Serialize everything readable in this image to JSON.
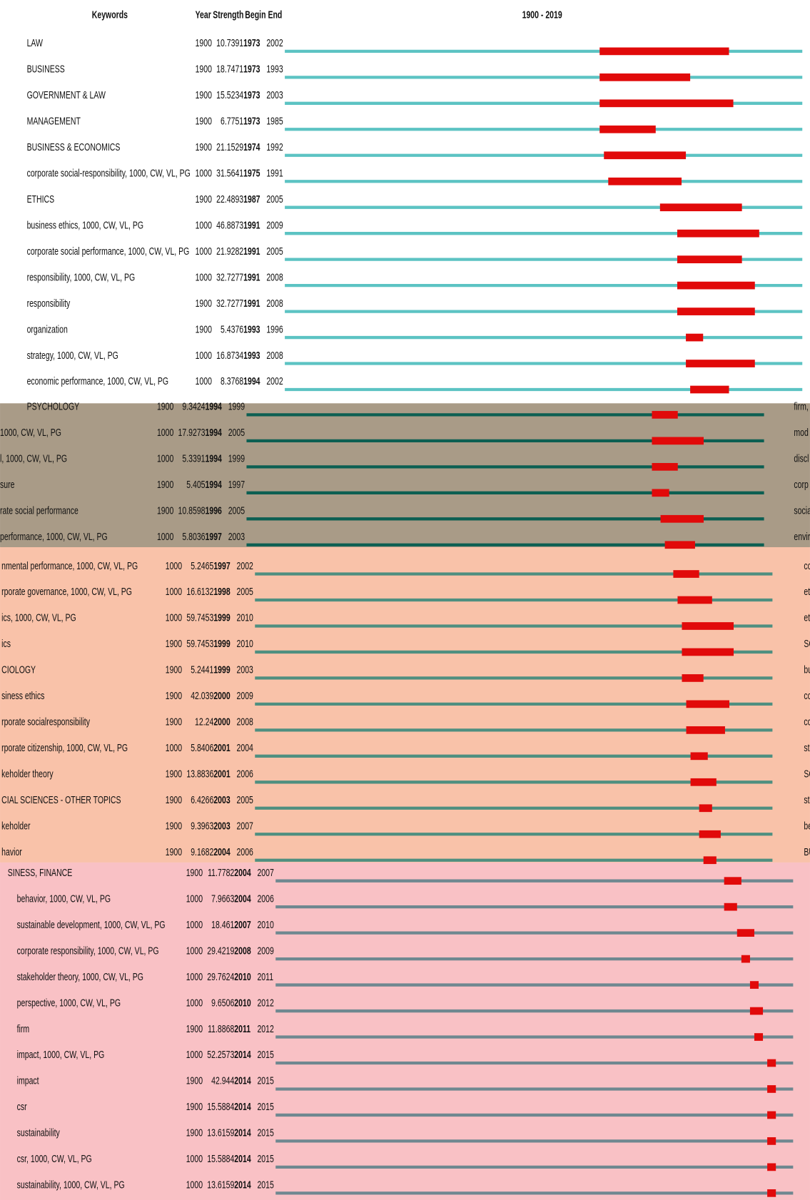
{
  "header": {
    "keywords": "Keywords",
    "year": "Year",
    "strength": "Strength",
    "begin": "Begin",
    "end": "End"
  },
  "timeline": {
    "label": "1900 - 2019",
    "xlim": [
      1900,
      2019
    ]
  },
  "sections": [
    {
      "rows": [
        {
          "keyword": "LAW",
          "year": 1900,
          "strength": 10.7391,
          "begin": 1973,
          "end": 2002
        },
        {
          "keyword": "BUSINESS",
          "year": 1900,
          "strength": 18.7471,
          "begin": 1973,
          "end": 1993
        },
        {
          "keyword": "GOVERNMENT & LAW",
          "year": 1900,
          "strength": 15.5234,
          "begin": 1973,
          "end": 2003
        },
        {
          "keyword": "MANAGEMENT",
          "year": 1900,
          "strength": 6.7751,
          "begin": 1973,
          "end": 1985
        },
        {
          "keyword": "BUSINESS & ECONOMICS",
          "year": 1900,
          "strength": 21.1529,
          "begin": 1974,
          "end": 1992
        },
        {
          "keyword": "corporate social-responsibility, 1000, CW, VL, PG",
          "year": 1000,
          "strength": 31.5641,
          "begin": 1975,
          "end": 1991
        },
        {
          "keyword": "ETHICS",
          "year": 1900,
          "strength": 22.4893,
          "begin": 1987,
          "end": 2005
        },
        {
          "keyword": "business ethics, 1000, CW, VL, PG",
          "year": 1000,
          "strength": 46.8873,
          "begin": 1991,
          "end": 2009
        },
        {
          "keyword": "corporate social performance, 1000, CW, VL, PG",
          "year": 1000,
          "strength": 21.9282,
          "begin": 1991,
          "end": 2005
        },
        {
          "keyword": "responsibility, 1000, CW, VL, PG",
          "year": 1000,
          "strength": 32.7277,
          "begin": 1991,
          "end": 2008
        },
        {
          "keyword": "responsibility",
          "year": 1900,
          "strength": 32.7277,
          "begin": 1991,
          "end": 2008
        },
        {
          "keyword": "organization",
          "year": 1900,
          "strength": 5.4376,
          "begin": 1993,
          "end": 1996
        },
        {
          "keyword": "strategy, 1000, CW, VL, PG",
          "year": 1000,
          "strength": 16.8734,
          "begin": 1993,
          "end": 2008
        },
        {
          "keyword": "economic performance, 1000, CW, VL, PG",
          "year": 1000,
          "strength": 8.3768,
          "begin": 1994,
          "end": 2002
        }
      ],
      "overflow": []
    },
    {
      "rows": [
        {
          "keyword": "PSYCHOLOGY",
          "year": 1900,
          "strength": 9.3424,
          "begin": 1994,
          "end": 1999
        },
        {
          "keyword": "1000, CW, VL, PG",
          "year": 1000,
          "strength": 17.9273,
          "begin": 1994,
          "end": 2005
        },
        {
          "keyword": "l, 1000, CW, VL, PG",
          "year": 1000,
          "strength": 5.3391,
          "begin": 1994,
          "end": 1999
        },
        {
          "keyword": "sure",
          "year": 1900,
          "strength": 5.405,
          "begin": 1994,
          "end": 1997
        },
        {
          "keyword": "rate social performance",
          "year": 1900,
          "strength": 10.8598,
          "begin": 1996,
          "end": 2005
        },
        {
          "keyword": "performance, 1000, CW, VL, PG",
          "year": 1000,
          "strength": 5.8036,
          "begin": 1997,
          "end": 2003
        }
      ],
      "overflow": [
        "firm,",
        "mod",
        "discl",
        "corp",
        "socia",
        "envir"
      ]
    },
    {
      "rows": [
        {
          "keyword": "nmental performance, 1000, CW, VL, PG",
          "year": 1000,
          "strength": 5.2465,
          "begin": 1997,
          "end": 2002
        },
        {
          "keyword": "rporate governance, 1000, CW, VL, PG",
          "year": 1000,
          "strength": 16.6132,
          "begin": 1998,
          "end": 2005
        },
        {
          "keyword": "ics, 1000, CW, VL, PG",
          "year": 1000,
          "strength": 59.7453,
          "begin": 1999,
          "end": 2010
        },
        {
          "keyword": "ics",
          "year": 1900,
          "strength": 59.7453,
          "begin": 1999,
          "end": 2010
        },
        {
          "keyword": "CIOLOGY",
          "year": 1900,
          "strength": 5.2441,
          "begin": 1999,
          "end": 2003
        },
        {
          "keyword": "siness ethics",
          "year": 1900,
          "strength": 42.039,
          "begin": 2000,
          "end": 2009
        },
        {
          "keyword": "rporate socialresponsibility",
          "year": 1900,
          "strength": 12.24,
          "begin": 2000,
          "end": 2008
        },
        {
          "keyword": "rporate citizenship, 1000, CW, VL, PG",
          "year": 1000,
          "strength": 5.8406,
          "begin": 2001,
          "end": 2004
        },
        {
          "keyword": "keholder theory",
          "year": 1900,
          "strength": 13.8836,
          "begin": 2001,
          "end": 2006
        },
        {
          "keyword": "CIAL SCIENCES - OTHER TOPICS",
          "year": 1900,
          "strength": 6.4266,
          "begin": 2003,
          "end": 2005
        },
        {
          "keyword": "keholder",
          "year": 1900,
          "strength": 9.3963,
          "begin": 2003,
          "end": 2007
        },
        {
          "keyword": "havior",
          "year": 1900,
          "strength": 9.1682,
          "begin": 2004,
          "end": 2006
        }
      ],
      "overflow": [
        "co",
        "et",
        "et",
        "SC",
        "bu",
        "co",
        "co",
        "st",
        "SC",
        "st",
        "be",
        "BU"
      ]
    },
    {
      "rows": [
        {
          "keyword": "SINESS, FINANCE",
          "year": 1900,
          "strength": 11.7782,
          "begin": 2004,
          "end": 2007
        },
        {
          "keyword": "behavior, 1000, CW, VL, PG",
          "year": 1000,
          "strength": 7.9663,
          "begin": 2004,
          "end": 2006
        },
        {
          "keyword": "sustainable development, 1000, CW, VL, PG",
          "year": 1000,
          "strength": 18.461,
          "begin": 2007,
          "end": 2010
        },
        {
          "keyword": "corporate responsibility, 1000, CW, VL, PG",
          "year": 1000,
          "strength": 29.4219,
          "begin": 2008,
          "end": 2009
        },
        {
          "keyword": "stakeholder theory, 1000, CW, VL, PG",
          "year": 1000,
          "strength": 29.7624,
          "begin": 2010,
          "end": 2011
        },
        {
          "keyword": "perspective, 1000, CW, VL, PG",
          "year": 1000,
          "strength": 9.6506,
          "begin": 2010,
          "end": 2012
        },
        {
          "keyword": "firm",
          "year": 1900,
          "strength": 11.8868,
          "begin": 2011,
          "end": 2012
        },
        {
          "keyword": "impact, 1000, CW, VL, PG",
          "year": 1000,
          "strength": 52.2573,
          "begin": 2014,
          "end": 2015
        },
        {
          "keyword": "impact",
          "year": 1900,
          "strength": 42.944,
          "begin": 2014,
          "end": 2015
        },
        {
          "keyword": "csr",
          "year": 1900,
          "strength": 15.5884,
          "begin": 2014,
          "end": 2015
        },
        {
          "keyword": "sustainability",
          "year": 1900,
          "strength": 13.6159,
          "begin": 2014,
          "end": 2015
        },
        {
          "keyword": "csr, 1000, CW, VL, PG",
          "year": 1000,
          "strength": 15.5884,
          "begin": 2014,
          "end": 2015
        },
        {
          "keyword": "sustainability, 1000, CW, VL, PG",
          "year": 1000,
          "strength": 13.6159,
          "begin": 2014,
          "end": 2015
        }
      ],
      "overflow": []
    }
  ]
}
